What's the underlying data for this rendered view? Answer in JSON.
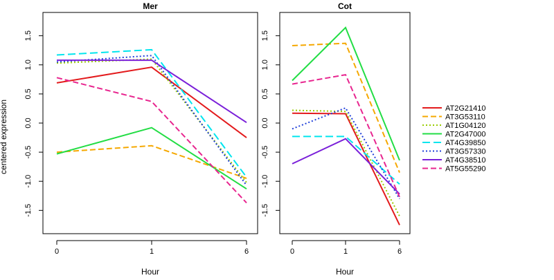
{
  "chart_data": [
    {
      "type": "line",
      "title": "Mer",
      "xlabel": "Hour",
      "ylabel": "centered expression",
      "categories": [
        "0",
        "1",
        "6"
      ],
      "ylim": [
        -1.9,
        1.9
      ],
      "yticks": [
        "-1.5",
        "-1.0",
        "-0.5",
        "0.0",
        "0.5",
        "1.0",
        "1.5"
      ],
      "series": [
        {
          "name": "AT2G21410",
          "values": [
            0.69,
            0.96,
            -0.25
          ],
          "color": "#e31a1c",
          "dash": "solid"
        },
        {
          "name": "AT3G53110",
          "values": [
            -0.5,
            -0.39,
            -0.95
          ],
          "color": "#f5a800",
          "dash": "dashed"
        },
        {
          "name": "AT1G04120",
          "values": [
            1.03,
            1.1,
            -1.02
          ],
          "color": "#99cc00",
          "dash": "dotted"
        },
        {
          "name": "AT2G47000",
          "values": [
            -0.53,
            -0.08,
            -1.13
          ],
          "color": "#22dd44",
          "dash": "solid"
        },
        {
          "name": "AT4G39850",
          "values": [
            1.17,
            1.26,
            -0.93
          ],
          "color": "#00e5ee",
          "dash": "longdash"
        },
        {
          "name": "AT3G57330",
          "values": [
            1.05,
            1.16,
            -1.07
          ],
          "color": "#1f3fd9",
          "dash": "dotted"
        },
        {
          "name": "AT4G38510",
          "values": [
            1.08,
            1.08,
            0.01
          ],
          "color": "#7a1fd9",
          "dash": "solid"
        },
        {
          "name": "AT5G55290",
          "values": [
            0.78,
            0.37,
            -1.37
          ],
          "color": "#e8258f",
          "dash": "dashed"
        }
      ]
    },
    {
      "type": "line",
      "title": "Cot",
      "xlabel": "Hour",
      "ylabel": "",
      "categories": [
        "0",
        "1",
        "6"
      ],
      "ylim": [
        -1.9,
        1.9
      ],
      "yticks": [
        "-1.5",
        "-1.0",
        "-0.5",
        "0.0",
        "0.5",
        "1.0",
        "1.5"
      ],
      "series": [
        {
          "name": "AT2G21410",
          "values": [
            0.17,
            0.16,
            -1.75
          ],
          "color": "#e31a1c",
          "dash": "solid"
        },
        {
          "name": "AT3G53110",
          "values": [
            1.33,
            1.37,
            -0.85
          ],
          "color": "#f5a800",
          "dash": "dashed"
        },
        {
          "name": "AT1G04120",
          "values": [
            0.22,
            0.2,
            -1.6
          ],
          "color": "#99cc00",
          "dash": "dotted"
        },
        {
          "name": "AT2G47000",
          "values": [
            0.73,
            1.64,
            -0.64
          ],
          "color": "#22dd44",
          "dash": "solid"
        },
        {
          "name": "AT4G39850",
          "values": [
            -0.23,
            -0.23,
            -1.05
          ],
          "color": "#00e5ee",
          "dash": "longdash"
        },
        {
          "name": "AT3G57330",
          "values": [
            -0.1,
            0.26,
            -1.3
          ],
          "color": "#1f3fd9",
          "dash": "dotted"
        },
        {
          "name": "AT4G38510",
          "values": [
            -0.7,
            -0.27,
            -1.22
          ],
          "color": "#7a1fd9",
          "dash": "solid"
        },
        {
          "name": "AT5G55290",
          "values": [
            0.67,
            0.83,
            -1.27
          ],
          "color": "#e8258f",
          "dash": "dashed"
        }
      ]
    }
  ],
  "legend": {
    "placement": "right",
    "items": [
      "AT2G21410",
      "AT3G53110",
      "AT1G04120",
      "AT2G47000",
      "AT4G39850",
      "AT3G57330",
      "AT4G38510",
      "AT5G55290"
    ]
  }
}
